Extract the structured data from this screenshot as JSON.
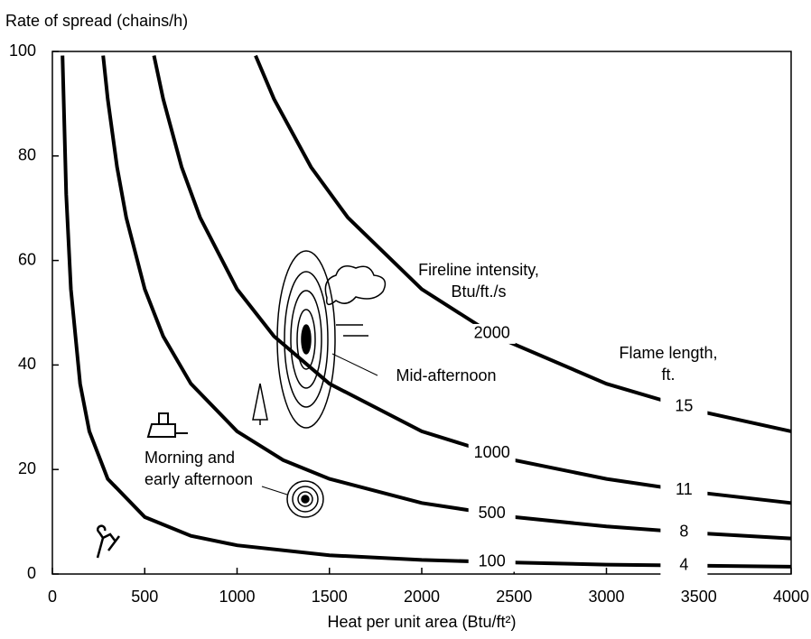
{
  "chart_data": {
    "type": "line",
    "title": "Rate of spread (chains/h)",
    "x_label": "Heat per unit area (Btu/ft²)",
    "xlim": [
      0,
      4000
    ],
    "xticks": [
      0,
      500,
      1000,
      1500,
      2000,
      2500,
      3000,
      3500,
      4000
    ],
    "ylim": [
      0,
      100
    ],
    "yticks": [
      0,
      20,
      40,
      60,
      80,
      100
    ],
    "grid": false,
    "color": "#000000",
    "series": [
      {
        "name": "100",
        "flame_length": 4,
        "x": [
          55,
          75,
          100,
          150,
          200,
          300,
          500,
          750,
          1000,
          1500,
          2000,
          2500,
          3000,
          3500,
          4000
        ],
        "values": [
          99.2,
          72.7,
          54.5,
          36.4,
          27.3,
          18.2,
          10.9,
          7.3,
          5.5,
          3.6,
          2.7,
          2.2,
          1.8,
          1.6,
          1.4
        ]
      },
      {
        "name": "500",
        "flame_length": 8,
        "x": [
          275,
          300,
          350,
          400,
          500,
          600,
          750,
          1000,
          1250,
          1500,
          2000,
          2500,
          3000,
          3500,
          4000
        ],
        "values": [
          99.2,
          90.9,
          77.9,
          68.2,
          54.5,
          45.5,
          36.4,
          27.3,
          21.8,
          18.2,
          13.6,
          10.9,
          9.1,
          7.8,
          6.8
        ]
      },
      {
        "name": "1000",
        "flame_length": 11,
        "x": [
          550,
          600,
          700,
          800,
          1000,
          1200,
          1500,
          2000,
          2500,
          3000,
          3500,
          4000
        ],
        "values": [
          99.2,
          90.9,
          77.9,
          68.2,
          54.5,
          45.5,
          36.4,
          27.3,
          21.8,
          18.2,
          15.6,
          13.6
        ]
      },
      {
        "name": "2000",
        "flame_length": 15,
        "x": [
          1100,
          1200,
          1400,
          1600,
          2000,
          2400,
          3000,
          3500,
          4000
        ],
        "values": [
          99.2,
          90.9,
          77.9,
          68.2,
          54.5,
          45.5,
          36.4,
          31.2,
          27.3
        ]
      }
    ],
    "annotations": [
      {
        "lines": [
          "Fireline intensity,",
          "Btu/ft./s"
        ]
      },
      {
        "lines": [
          "Flame length,",
          "ft."
        ]
      },
      {
        "lines": [
          "Mid-afternoon"
        ]
      },
      {
        "lines": [
          "Morning and",
          "early afternoon"
        ]
      }
    ]
  }
}
